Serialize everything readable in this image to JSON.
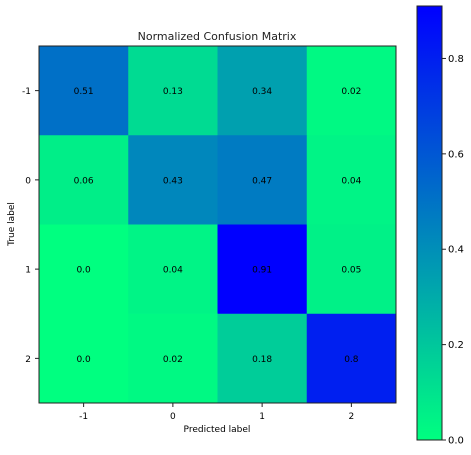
{
  "chart_data": {
    "type": "heatmap",
    "title": "Normalized Confusion Matrix",
    "xlabel": "Predicted label",
    "ylabel": "True label",
    "x_categories": [
      "-1",
      "0",
      "1",
      "2"
    ],
    "y_categories": [
      "-1",
      "0",
      "1",
      "2"
    ],
    "values": [
      [
        0.51,
        0.13,
        0.34,
        0.02
      ],
      [
        0.06,
        0.43,
        0.47,
        0.04
      ],
      [
        0.0,
        0.04,
        0.91,
        0.05
      ],
      [
        0.0,
        0.02,
        0.18,
        0.8
      ]
    ],
    "cell_labels": [
      [
        "0.51",
        "0.13",
        "0.34",
        "0.02"
      ],
      [
        "0.06",
        "0.43",
        "0.47",
        "0.04"
      ],
      [
        "0.0",
        "0.04",
        "0.91",
        "0.05"
      ],
      [
        "0.0",
        "0.02",
        "0.18",
        "0.8"
      ]
    ],
    "colorbar": {
      "range": [
        0.0,
        0.91
      ],
      "ticks": [
        0.0,
        0.2,
        0.4,
        0.6,
        0.8
      ],
      "tick_labels": [
        "0.0",
        "0.2",
        "0.4",
        "0.6",
        "0.8"
      ],
      "colormap": "winter_r",
      "color_low": "#00ff80",
      "color_high": "#0000ff"
    }
  }
}
